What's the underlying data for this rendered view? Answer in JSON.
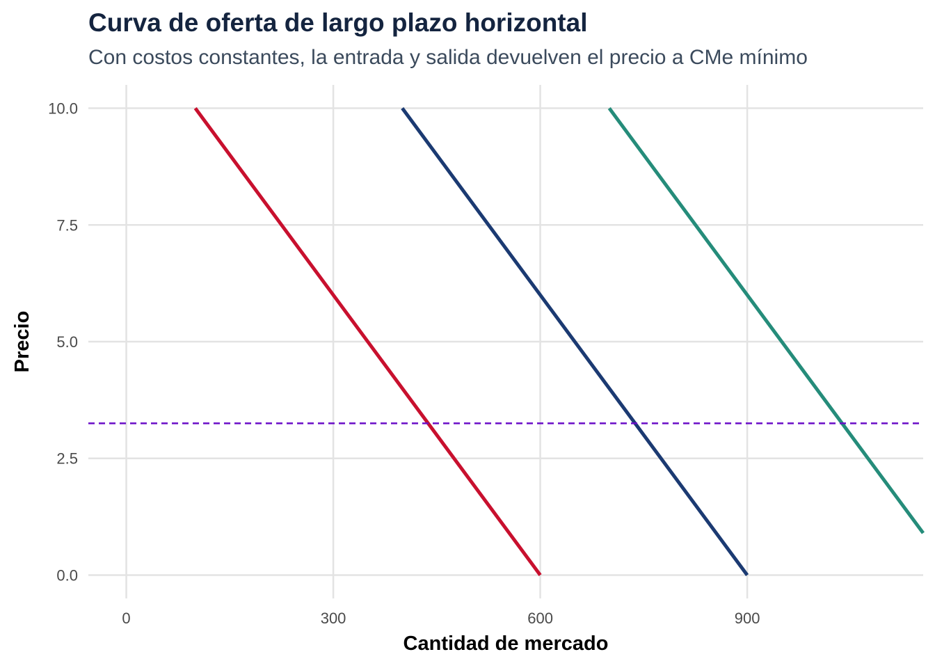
{
  "chart_data": {
    "type": "line",
    "title": "Curva de oferta de largo plazo horizontal",
    "subtitle": "Con costos constantes, la entrada y salida devuelven el precio a CMe mínimo",
    "xlabel": "Cantidad de mercado",
    "ylabel": "Precio",
    "xlim": [
      -55,
      1155
    ],
    "ylim": [
      -0.5,
      10.5
    ],
    "x_ticks": [
      0,
      300,
      600,
      900
    ],
    "y_ticks": [
      0.0,
      2.5,
      5.0,
      7.5,
      10.0
    ],
    "x_tick_labels": [
      "0",
      "300",
      "600",
      "900"
    ],
    "y_tick_labels": [
      "0.0",
      "2.5",
      "5.0",
      "7.5",
      "10.0"
    ],
    "grid": true,
    "series": [
      {
        "color": "#c8102e",
        "points": [
          [
            100,
            10
          ],
          [
            600,
            0
          ]
        ]
      },
      {
        "color": "#1b3a72",
        "points": [
          [
            400,
            10
          ],
          [
            900,
            0
          ]
        ]
      },
      {
        "color": "#258c7a",
        "points": [
          [
            700,
            10
          ],
          [
            1155,
            0.9
          ]
        ]
      }
    ],
    "reference_lines": [
      {
        "orientation": "horizontal",
        "y": 3.25,
        "style": "dashed",
        "color": "#6a0dc8"
      }
    ]
  }
}
